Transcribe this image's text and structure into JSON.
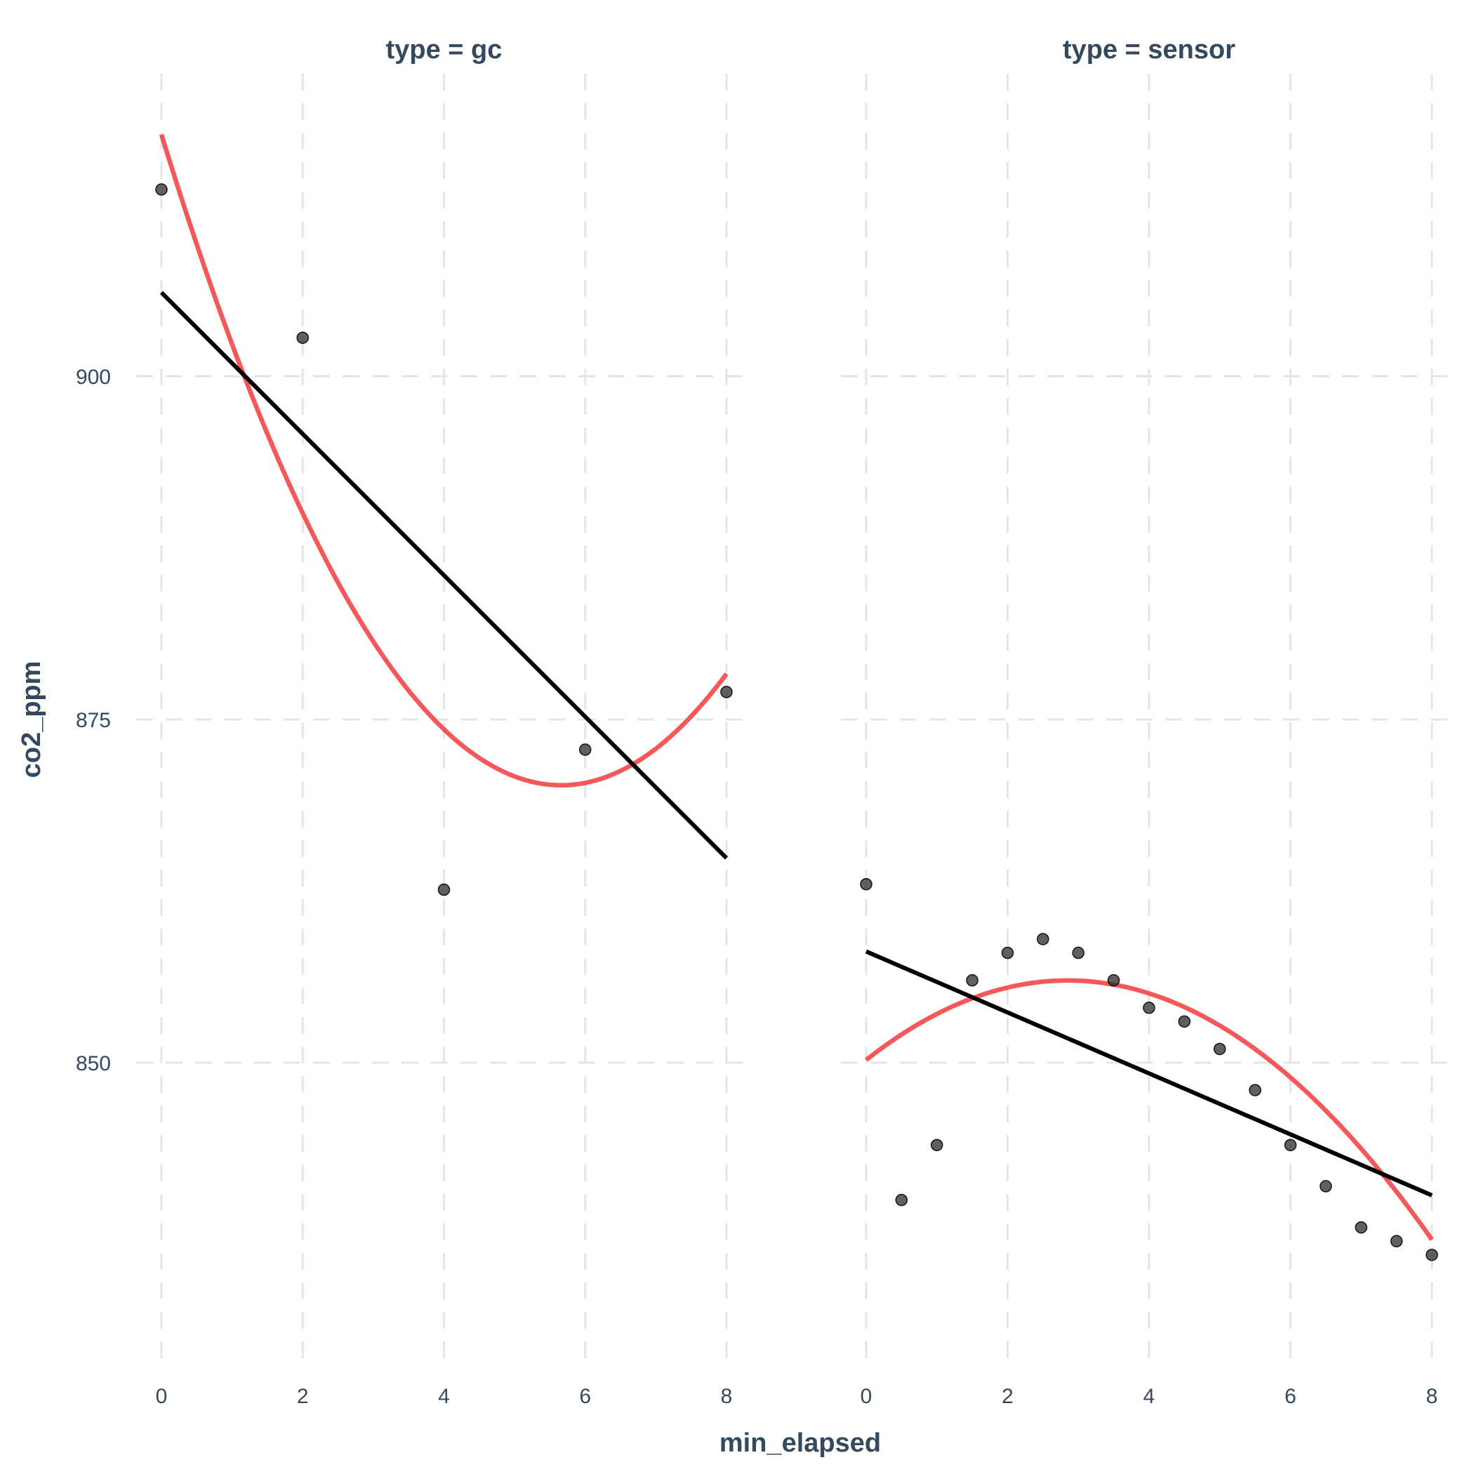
{
  "chart_data": {
    "type": "scatter",
    "xlabel": "min_elapsed",
    "ylabel": "co2_ppm",
    "xlim": [
      0,
      8
    ],
    "ylim": [
      830,
      922
    ],
    "x_ticks": [
      0,
      2,
      4,
      6,
      8
    ],
    "y_ticks": [
      850,
      875,
      900
    ],
    "grid": true,
    "fit_colors": {
      "linear": "#000000",
      "quadratic": "#f23b3b",
      "points": "#2b2b2b"
    },
    "panels": [
      {
        "title": "type = gc",
        "points": [
          {
            "x": 0,
            "y": 913.6
          },
          {
            "x": 2,
            "y": 902.8
          },
          {
            "x": 4,
            "y": 862.6
          },
          {
            "x": 6,
            "y": 872.8
          },
          {
            "x": 8,
            "y": 877.0
          }
        ],
        "linear_fit": {
          "intercept": 906.1,
          "slope": -5.15
        },
        "quadratic_fit": {
          "a": 917.6,
          "b": -16.75,
          "c": 1.48
        }
      },
      {
        "title": "type = sensor",
        "points": [
          {
            "x": 0,
            "y": 863.0
          },
          {
            "x": 0.5,
            "y": 840.0
          },
          {
            "x": 1,
            "y": 844.0
          },
          {
            "x": 1.5,
            "y": 856.0
          },
          {
            "x": 2,
            "y": 858.0
          },
          {
            "x": 2.5,
            "y": 859.0
          },
          {
            "x": 3,
            "y": 858.0
          },
          {
            "x": 3.5,
            "y": 856.0
          },
          {
            "x": 4,
            "y": 854.0
          },
          {
            "x": 4.5,
            "y": 853.0
          },
          {
            "x": 5,
            "y": 851.0
          },
          {
            "x": 5.5,
            "y": 848.0
          },
          {
            "x": 6,
            "y": 844.0
          },
          {
            "x": 6.5,
            "y": 841.0
          },
          {
            "x": 7,
            "y": 838.0
          },
          {
            "x": 7.5,
            "y": 837.0
          },
          {
            "x": 8,
            "y": 836.0
          }
        ],
        "linear_fit": {
          "intercept": 858.1,
          "slope": -2.22
        },
        "quadratic_fit": {
          "a": 850.2,
          "b": 4.06,
          "c": -0.712
        }
      }
    ]
  }
}
